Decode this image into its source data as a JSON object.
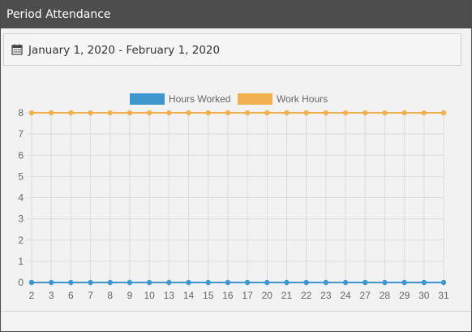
{
  "header": {
    "title": "Period Attendance"
  },
  "date_range": {
    "icon": "calendar-icon",
    "text": "January 1, 2020 - February 1, 2020"
  },
  "chart_data": {
    "type": "line",
    "categories": [
      "2",
      "3",
      "6",
      "7",
      "8",
      "9",
      "10",
      "13",
      "14",
      "15",
      "16",
      "17",
      "20",
      "21",
      "22",
      "23",
      "24",
      "27",
      "28",
      "29",
      "30",
      "31"
    ],
    "series": [
      {
        "name": "Hours Worked",
        "color": "#4097cf",
        "values": [
          0,
          0,
          0,
          0,
          0,
          0,
          0,
          0,
          0,
          0,
          0,
          0,
          0,
          0,
          0,
          0,
          0,
          0,
          0,
          0,
          0,
          0
        ]
      },
      {
        "name": "Work Hours",
        "color": "#f2b150",
        "values": [
          8,
          8,
          8,
          8,
          8,
          8,
          8,
          8,
          8,
          8,
          8,
          8,
          8,
          8,
          8,
          8,
          8,
          8,
          8,
          8,
          8,
          8
        ]
      }
    ],
    "ylim": [
      0,
      8
    ],
    "yticks": [
      0,
      1,
      2,
      3,
      4,
      5,
      6,
      7,
      8
    ],
    "grid": true,
    "legend": "top-center"
  }
}
